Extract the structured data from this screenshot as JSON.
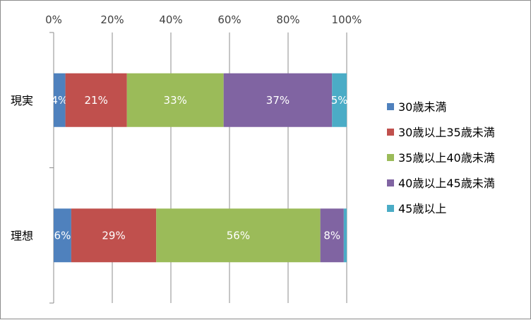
{
  "chart_data": {
    "type": "bar",
    "orientation": "horizontal",
    "stacked": "percent",
    "categories": [
      "現実",
      "理想"
    ],
    "series": [
      {
        "name": "30歳未満",
        "color": "#4f81bd",
        "values": [
          4,
          6
        ],
        "labels": [
          "4%",
          "6%"
        ]
      },
      {
        "name": "30歳以上35歳未満",
        "color": "#c0504d",
        "values": [
          21,
          29
        ],
        "labels": [
          "21%",
          "29%"
        ]
      },
      {
        "name": "35歳以上40歳未満",
        "color": "#9bbb59",
        "values": [
          33,
          56
        ],
        "labels": [
          "33%",
          "56%"
        ]
      },
      {
        "name": "40歳以上45歳未満",
        "color": "#8064a2",
        "values": [
          37,
          8
        ],
        "labels": [
          "37%",
          "8%"
        ]
      },
      {
        "name": "45歳以上",
        "color": "#4bacc6",
        "values": [
          5,
          1
        ],
        "labels": [
          "5%",
          ""
        ]
      }
    ],
    "xaxis": {
      "ticks": [
        "0%",
        "20%",
        "40%",
        "60%",
        "80%",
        "100%"
      ],
      "range": [
        0,
        100
      ],
      "position": "top"
    },
    "grid": true,
    "legend": "right"
  }
}
